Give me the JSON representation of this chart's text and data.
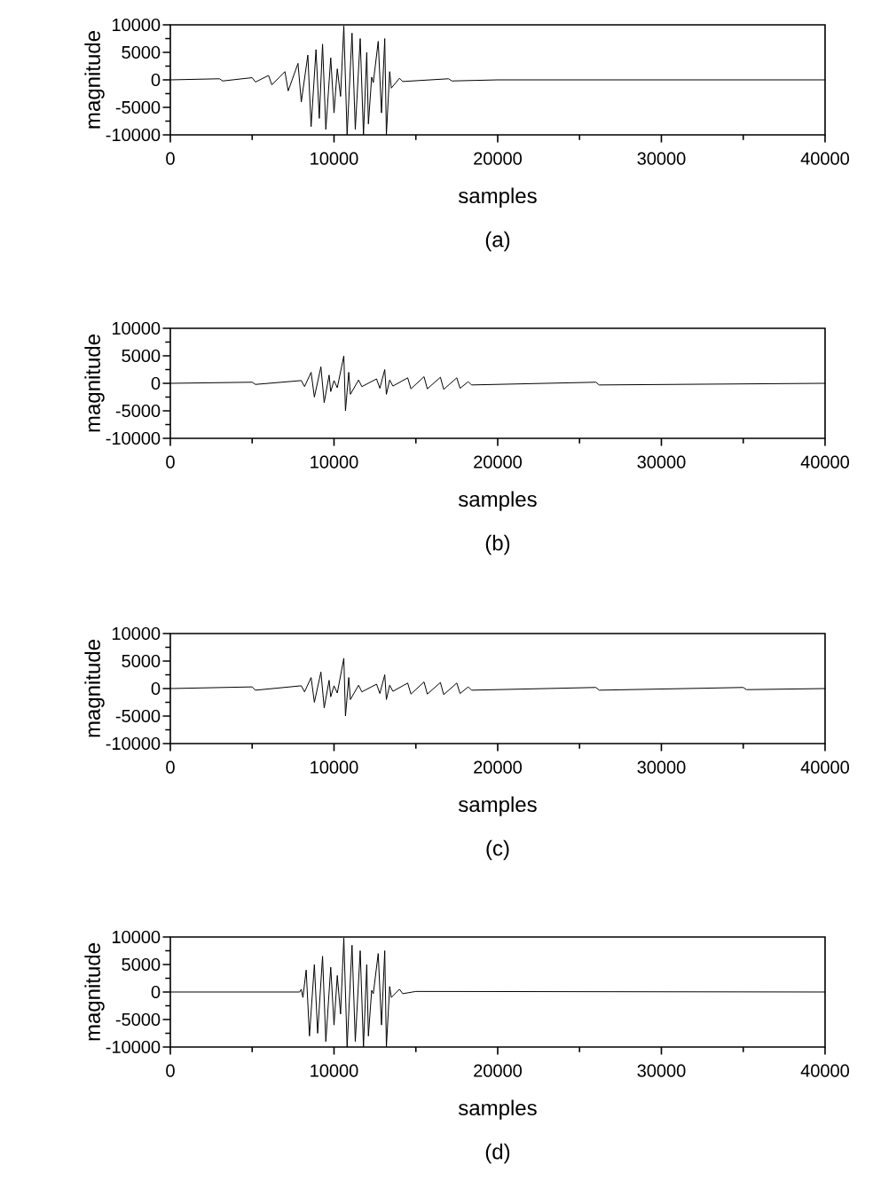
{
  "chart_data": [
    {
      "type": "line",
      "xlabel": "samples",
      "ylabel": "magnitude",
      "annotations": [
        "(a)"
      ],
      "xlim": [
        0,
        40000
      ],
      "ylim": [
        -10000,
        10000
      ],
      "xticks": [
        0,
        10000,
        20000,
        30000,
        40000
      ],
      "yticks": [
        -10000,
        -5000,
        0,
        5000,
        10000
      ],
      "series": [
        {
          "color": "#000000",
          "x": [
            0,
            3000,
            3200,
            5000,
            5200,
            6000,
            6200,
            7000,
            7200,
            7800,
            8000,
            8400,
            8600,
            8900,
            9100,
            9300,
            9500,
            9800,
            10000,
            10200,
            10400,
            10600,
            10800,
            11100,
            11300,
            11600,
            11800,
            12000,
            12100,
            12300,
            12400,
            12700,
            12900,
            13100,
            13200,
            13400,
            13500,
            14000,
            14200,
            17000,
            17200,
            20000,
            40000
          ],
          "values": [
            0,
            200,
            -200,
            400,
            -400,
            800,
            -900,
            1500,
            -2000,
            3000,
            -4000,
            4500,
            -8500,
            5500,
            -7000,
            6500,
            -9000,
            4000,
            -6000,
            2000,
            -3000,
            9800,
            -10000,
            8500,
            -9000,
            7500,
            -10000,
            5000,
            -8000,
            500,
            -500,
            7000,
            -6000,
            7500,
            -10000,
            1500,
            -1500,
            300,
            -300,
            200,
            -200,
            0,
            0
          ]
        }
      ]
    },
    {
      "type": "line",
      "xlabel": "samples",
      "ylabel": "magnitude",
      "annotations": [
        "(b)"
      ],
      "xlim": [
        0,
        40000
      ],
      "ylim": [
        -10000,
        10000
      ],
      "xticks": [
        0,
        10000,
        20000,
        30000,
        40000
      ],
      "yticks": [
        -10000,
        -5000,
        0,
        5000,
        10000
      ],
      "series": [
        {
          "color": "#000000",
          "x": [
            0,
            5000,
            5200,
            8000,
            8200,
            8600,
            8800,
            9200,
            9400,
            9700,
            9800,
            10000,
            10200,
            10600,
            10700,
            10900,
            11000,
            11500,
            11700,
            12600,
            12800,
            13100,
            13200,
            13400,
            13600,
            14500,
            14700,
            15500,
            15700,
            16500,
            16700,
            17500,
            17700,
            18200,
            18400,
            26000,
            26200,
            40000
          ],
          "values": [
            0,
            200,
            -200,
            500,
            -600,
            2000,
            -2500,
            3000,
            -3500,
            1500,
            -1500,
            500,
            -800,
            5000,
            -5000,
            2000,
            -2000,
            600,
            -600,
            800,
            -900,
            2500,
            -2000,
            600,
            -500,
            1000,
            -1000,
            1200,
            -1000,
            1100,
            -1100,
            1000,
            -900,
            300,
            -300,
            200,
            -300,
            0
          ]
        }
      ]
    },
    {
      "type": "line",
      "xlabel": "samples",
      "ylabel": "magnitude",
      "annotations": [
        "(c)"
      ],
      "xlim": [
        0,
        40000
      ],
      "ylim": [
        -10000,
        10000
      ],
      "xticks": [
        0,
        10000,
        20000,
        30000,
        40000
      ],
      "yticks": [
        -10000,
        -5000,
        0,
        5000,
        10000
      ],
      "series": [
        {
          "color": "#000000",
          "x": [
            0,
            5000,
            5200,
            8000,
            8200,
            8600,
            8800,
            9200,
            9400,
            9700,
            9800,
            10000,
            10200,
            10600,
            10700,
            10900,
            11000,
            11500,
            11700,
            12600,
            12800,
            13100,
            13200,
            13400,
            13600,
            14500,
            14700,
            15500,
            15700,
            16500,
            16700,
            17500,
            17700,
            18200,
            18400,
            26000,
            26200,
            35000,
            35200,
            40000
          ],
          "values": [
            0,
            300,
            -300,
            500,
            -600,
            2000,
            -2500,
            3000,
            -3500,
            1500,
            -1500,
            500,
            -800,
            5500,
            -5000,
            2000,
            -2000,
            600,
            -600,
            800,
            -900,
            2500,
            -2000,
            600,
            -500,
            1000,
            -1000,
            1200,
            -1000,
            1100,
            -1100,
            1000,
            -900,
            300,
            -300,
            200,
            -300,
            200,
            -200,
            0
          ]
        }
      ]
    },
    {
      "type": "line",
      "xlabel": "samples",
      "ylabel": "magnitude",
      "annotations": [
        "(d)"
      ],
      "xlim": [
        0,
        40000
      ],
      "ylim": [
        -10000,
        10000
      ],
      "xticks": [
        0,
        10000,
        20000,
        30000,
        40000
      ],
      "yticks": [
        -10000,
        -5000,
        0,
        5000,
        10000
      ],
      "series": [
        {
          "color": "#000000",
          "x": [
            0,
            7900,
            8000,
            8100,
            8300,
            8500,
            8800,
            9000,
            9300,
            9500,
            9800,
            10000,
            10200,
            10400,
            10600,
            10800,
            11100,
            11300,
            11600,
            11800,
            12000,
            12100,
            12300,
            12400,
            12700,
            12900,
            13100,
            13200,
            13400,
            13500,
            14000,
            14200,
            15000,
            40000
          ],
          "values": [
            0,
            0,
            500,
            -1000,
            4000,
            -8000,
            5000,
            -7500,
            6500,
            -9000,
            4500,
            -6000,
            3000,
            -4000,
            9800,
            -10000,
            8500,
            -9000,
            7500,
            -10000,
            5000,
            -8000,
            300,
            -300,
            7000,
            -6000,
            7500,
            -10000,
            1000,
            -1000,
            500,
            -300,
            100,
            0
          ]
        }
      ]
    }
  ]
}
